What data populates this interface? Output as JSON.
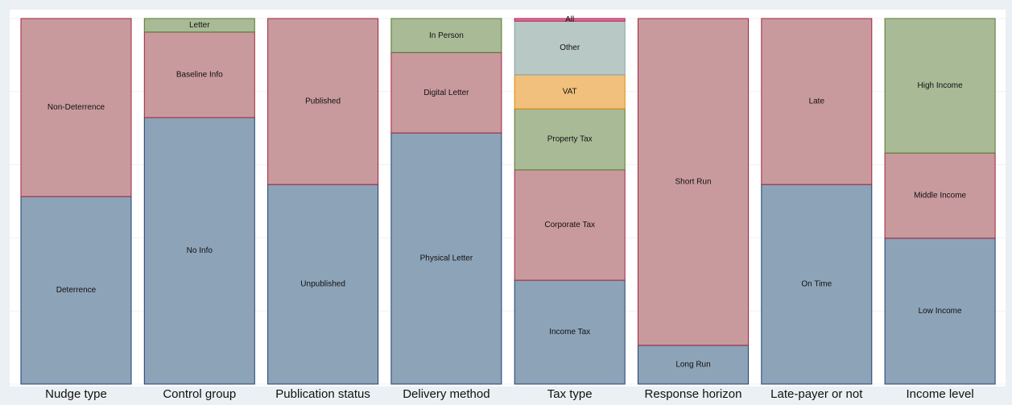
{
  "chart_data": {
    "type": "stacked_panels",
    "ylim": [
      0,
      100
    ],
    "yticks": [
      0,
      20,
      40,
      60,
      80,
      100
    ],
    "grid": true,
    "panels": [
      {
        "label": "Nudge type",
        "segments": [
          {
            "name": "Deterrence",
            "value": 51.3,
            "color": "#8da3b8"
          },
          {
            "name": "Non-Deterrence",
            "value": 48.7,
            "color": "#c99a9d"
          }
        ]
      },
      {
        "label": "Control group",
        "segments": [
          {
            "name": "No Info",
            "value": 72.9,
            "color": "#8da3b8"
          },
          {
            "name": "Baseline Info",
            "value": 23.4,
            "color": "#c99a9d"
          },
          {
            "name": "Letter",
            "value": 3.7,
            "color": "#a9ba97"
          }
        ]
      },
      {
        "label": "Publication status",
        "segments": [
          {
            "name": "Unpublished",
            "value": 54.6,
            "color": "#8da3b8"
          },
          {
            "name": "Published",
            "value": 45.4,
            "color": "#c99a9d"
          }
        ]
      },
      {
        "label": "Delivery method",
        "segments": [
          {
            "name": "Physical Letter",
            "value": 68.7,
            "color": "#8da3b8"
          },
          {
            "name": "Digital Letter",
            "value": 22.0,
            "color": "#c99a9d"
          },
          {
            "name": "In Person",
            "value": 9.3,
            "color": "#a9ba97"
          }
        ]
      },
      {
        "label": "Tax type",
        "segments": [
          {
            "name": "Income Tax",
            "value": 28.4,
            "color": "#8da3b8"
          },
          {
            "name": "Corporate Tax",
            "value": 30.2,
            "color": "#c99a9d"
          },
          {
            "name": "Property Tax",
            "value": 16.7,
            "color": "#a9ba97"
          },
          {
            "name": "VAT",
            "value": 9.3,
            "color": "#f0c07c"
          },
          {
            "name": "Other",
            "value": 14.7,
            "color": "#b8c8c5"
          },
          {
            "name": "All",
            "value": 0.7,
            "color": "#d77a9a"
          }
        ]
      },
      {
        "label": "Response horizon",
        "segments": [
          {
            "name": "Long Run",
            "value": 10.6,
            "color": "#8da3b8"
          },
          {
            "name": "Short Run",
            "value": 89.4,
            "color": "#c99a9d"
          }
        ]
      },
      {
        "label": "Late-payer or not",
        "segments": [
          {
            "name": "On Time",
            "value": 54.6,
            "color": "#8da3b8"
          },
          {
            "name": "Late",
            "value": 45.4,
            "color": "#c99a9d"
          }
        ]
      },
      {
        "label": "Income level",
        "segments": [
          {
            "name": "Low Income",
            "value": 39.9,
            "color": "#8da3b8"
          },
          {
            "name": "Middle Income",
            "value": 23.3,
            "color": "#c99a9d"
          },
          {
            "name": "High Income",
            "value": 36.8,
            "color": "#a9ba97"
          }
        ]
      }
    ]
  }
}
